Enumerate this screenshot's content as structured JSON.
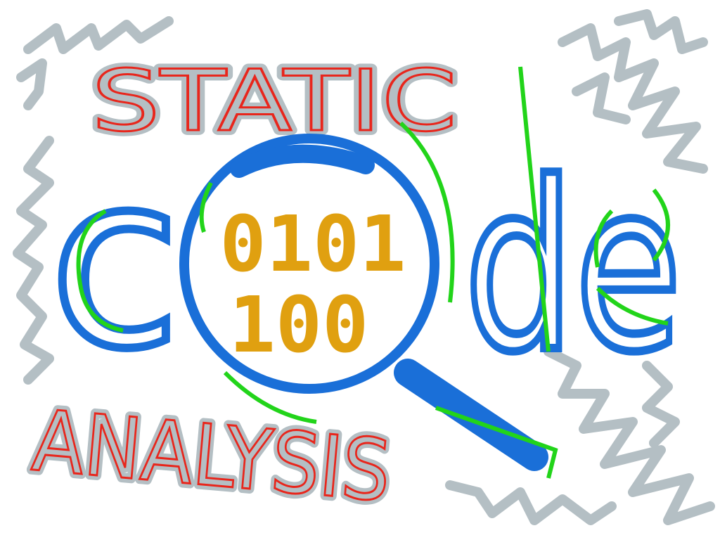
{
  "illustration": {
    "top_word": "STATIC",
    "big_letter": "c",
    "big_letters_right": "de",
    "binary_line_1": "0101",
    "binary_line_2": "100",
    "bottom_word": "ANALYSIS"
  }
}
